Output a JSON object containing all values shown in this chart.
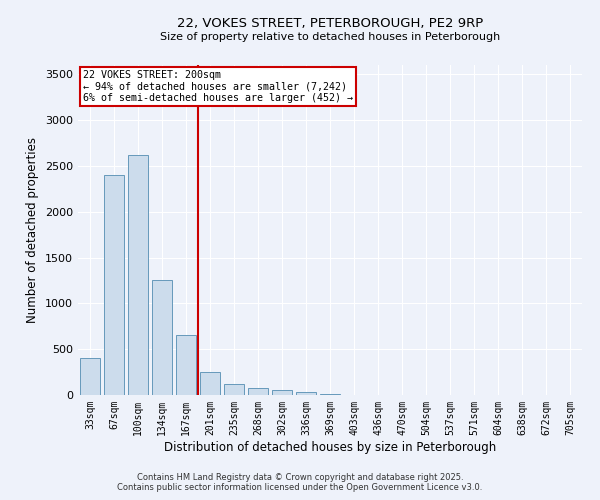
{
  "title_line1": "22, VOKES STREET, PETERBOROUGH, PE2 9RP",
  "title_line2": "Size of property relative to detached houses in Peterborough",
  "xlabel": "Distribution of detached houses by size in Peterborough",
  "ylabel": "Number of detached properties",
  "bar_color": "#ccdcec",
  "bar_edge_color": "#6699bb",
  "categories": [
    "33sqm",
    "67sqm",
    "100sqm",
    "134sqm",
    "167sqm",
    "201sqm",
    "235sqm",
    "268sqm",
    "302sqm",
    "336sqm",
    "369sqm",
    "403sqm",
    "436sqm",
    "470sqm",
    "504sqm",
    "537sqm",
    "571sqm",
    "604sqm",
    "638sqm",
    "672sqm",
    "705sqm"
  ],
  "values": [
    400,
    2400,
    2620,
    1250,
    650,
    250,
    120,
    80,
    50,
    30,
    10,
    5,
    3,
    2,
    1,
    1,
    0,
    0,
    0,
    0,
    0
  ],
  "vline_index": 5,
  "vline_color": "#cc0000",
  "annotation_title": "22 VOKES STREET: 200sqm",
  "annotation_line2": "← 94% of detached houses are smaller (7,242)",
  "annotation_line3": "6% of semi-detached houses are larger (452) →",
  "annotation_box_color": "#cc0000",
  "annotation_bg": "#ffffff",
  "footer_line1": "Contains HM Land Registry data © Crown copyright and database right 2025.",
  "footer_line2": "Contains public sector information licensed under the Open Government Licence v3.0.",
  "ylim": [
    0,
    3600
  ],
  "background_color": "#eef2fa",
  "grid_color": "#ffffff"
}
